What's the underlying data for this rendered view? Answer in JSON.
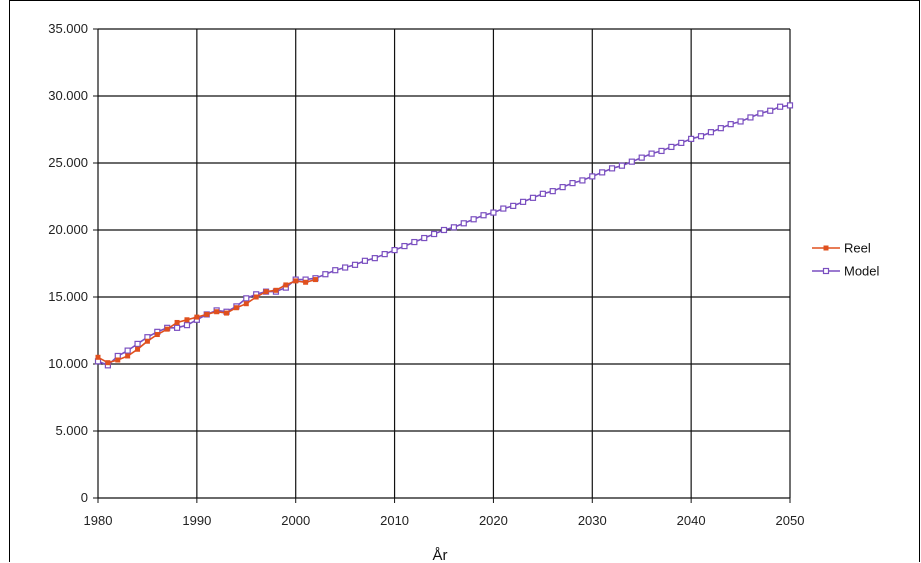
{
  "chart_data": {
    "type": "line",
    "title": "",
    "xlabel": "År",
    "ylabel": "",
    "xlim": [
      1980,
      2050
    ],
    "ylim": [
      0,
      35000
    ],
    "x_ticks": [
      1980,
      1990,
      2000,
      2010,
      2020,
      2030,
      2040,
      2050
    ],
    "y_ticks": [
      0,
      5000,
      10000,
      15000,
      20000,
      25000,
      30000,
      35000
    ],
    "x_tick_labels": [
      "1980",
      "1990",
      "2000",
      "2010",
      "2020",
      "2030",
      "2040",
      "2050"
    ],
    "y_tick_labels": [
      "0",
      "5.000",
      "10.000",
      "15.000",
      "20.000",
      "25.000",
      "30.000",
      "35.000"
    ],
    "grid": true,
    "legend_position": "right",
    "series": [
      {
        "name": "Reel",
        "color": "#e0501e",
        "marker": "filled-square",
        "x": [
          1980,
          1981,
          1982,
          1983,
          1984,
          1985,
          1986,
          1987,
          1988,
          1989,
          1990,
          1991,
          1992,
          1993,
          1994,
          1995,
          1996,
          1997,
          1998,
          1999,
          2000,
          2001,
          2002
        ],
        "y": [
          10500,
          10100,
          10300,
          10600,
          11100,
          11700,
          12200,
          12600,
          13100,
          13300,
          13500,
          13700,
          13900,
          13800,
          14200,
          14500,
          15000,
          15400,
          15500,
          15900,
          16200,
          16100,
          16300
        ]
      },
      {
        "name": "Model",
        "color": "#7a4fc0",
        "marker": "open-square",
        "x": [
          1980,
          1981,
          1982,
          1983,
          1984,
          1985,
          1986,
          1987,
          1988,
          1989,
          1990,
          1991,
          1992,
          1993,
          1994,
          1995,
          1996,
          1997,
          1998,
          1999,
          2000,
          2001,
          2002,
          2003,
          2004,
          2005,
          2006,
          2007,
          2008,
          2009,
          2010,
          2011,
          2012,
          2013,
          2014,
          2015,
          2016,
          2017,
          2018,
          2019,
          2020,
          2021,
          2022,
          2023,
          2024,
          2025,
          2026,
          2027,
          2028,
          2029,
          2030,
          2031,
          2032,
          2033,
          2034,
          2035,
          2036,
          2037,
          2038,
          2039,
          2040,
          2041,
          2042,
          2043,
          2044,
          2045,
          2046,
          2047,
          2048,
          2049,
          2050
        ],
        "y": [
          10200,
          9900,
          10600,
          11000,
          11500,
          12000,
          12400,
          12700,
          12700,
          12900,
          13300,
          13700,
          14000,
          13900,
          14300,
          14900,
          15200,
          15400,
          15400,
          15700,
          16300,
          16300,
          16400,
          16700,
          17000,
          17200,
          17400,
          17700,
          17900,
          18200,
          18500,
          18800,
          19100,
          19400,
          19700,
          20000,
          20200,
          20500,
          20800,
          21100,
          21300,
          21600,
          21800,
          22100,
          22400,
          22700,
          22900,
          23200,
          23500,
          23700,
          24000,
          24300,
          24600,
          24800,
          25100,
          25400,
          25700,
          25900,
          26200,
          26500,
          26800,
          27000,
          27300,
          27600,
          27900,
          28100,
          28400,
          28700,
          28900,
          29200,
          29300
        ]
      }
    ]
  }
}
